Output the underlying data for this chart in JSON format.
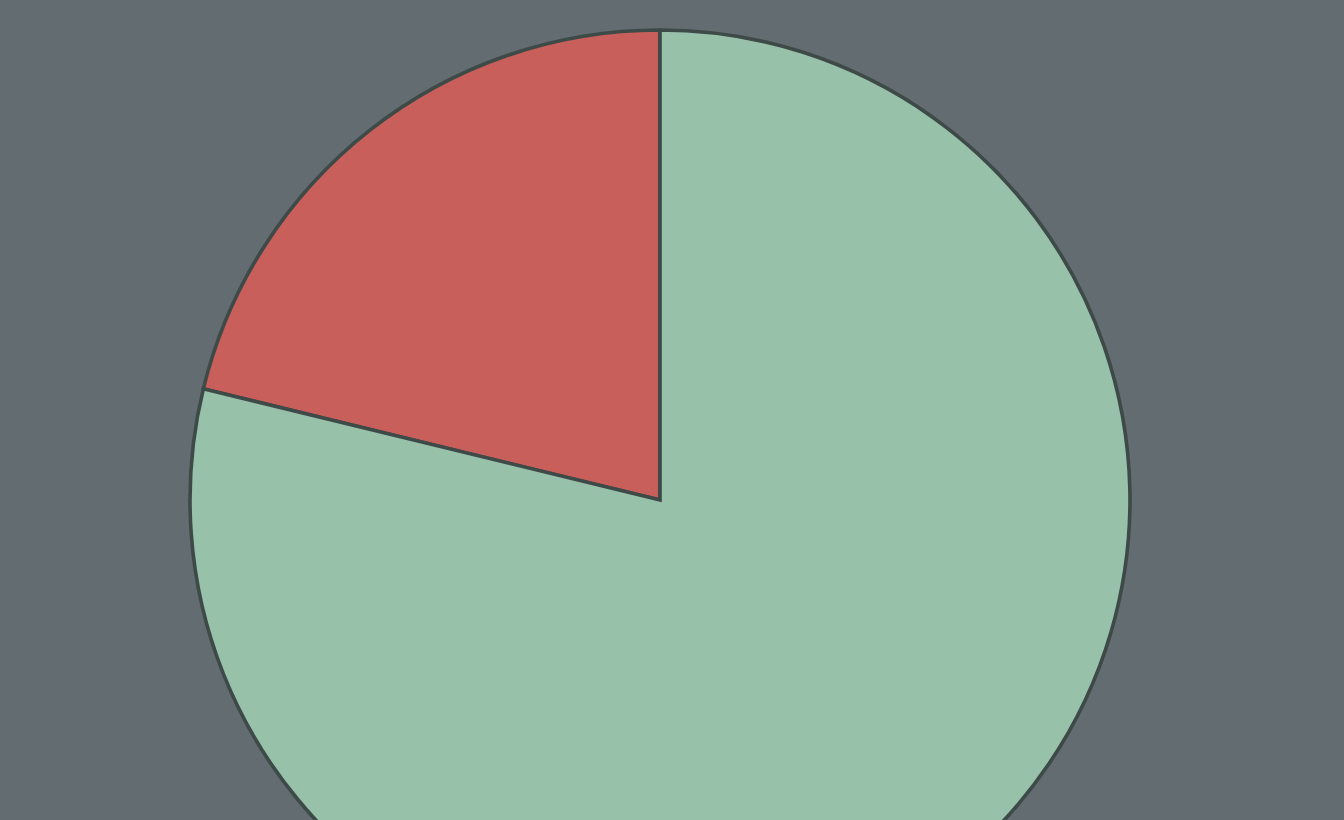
{
  "chart_data": {
    "type": "pie",
    "categories": [
      null,
      null
    ],
    "values": [
      21.2,
      78.8
    ],
    "colors": [
      "#c95f5a",
      "#98c1aa"
    ]
  }
}
